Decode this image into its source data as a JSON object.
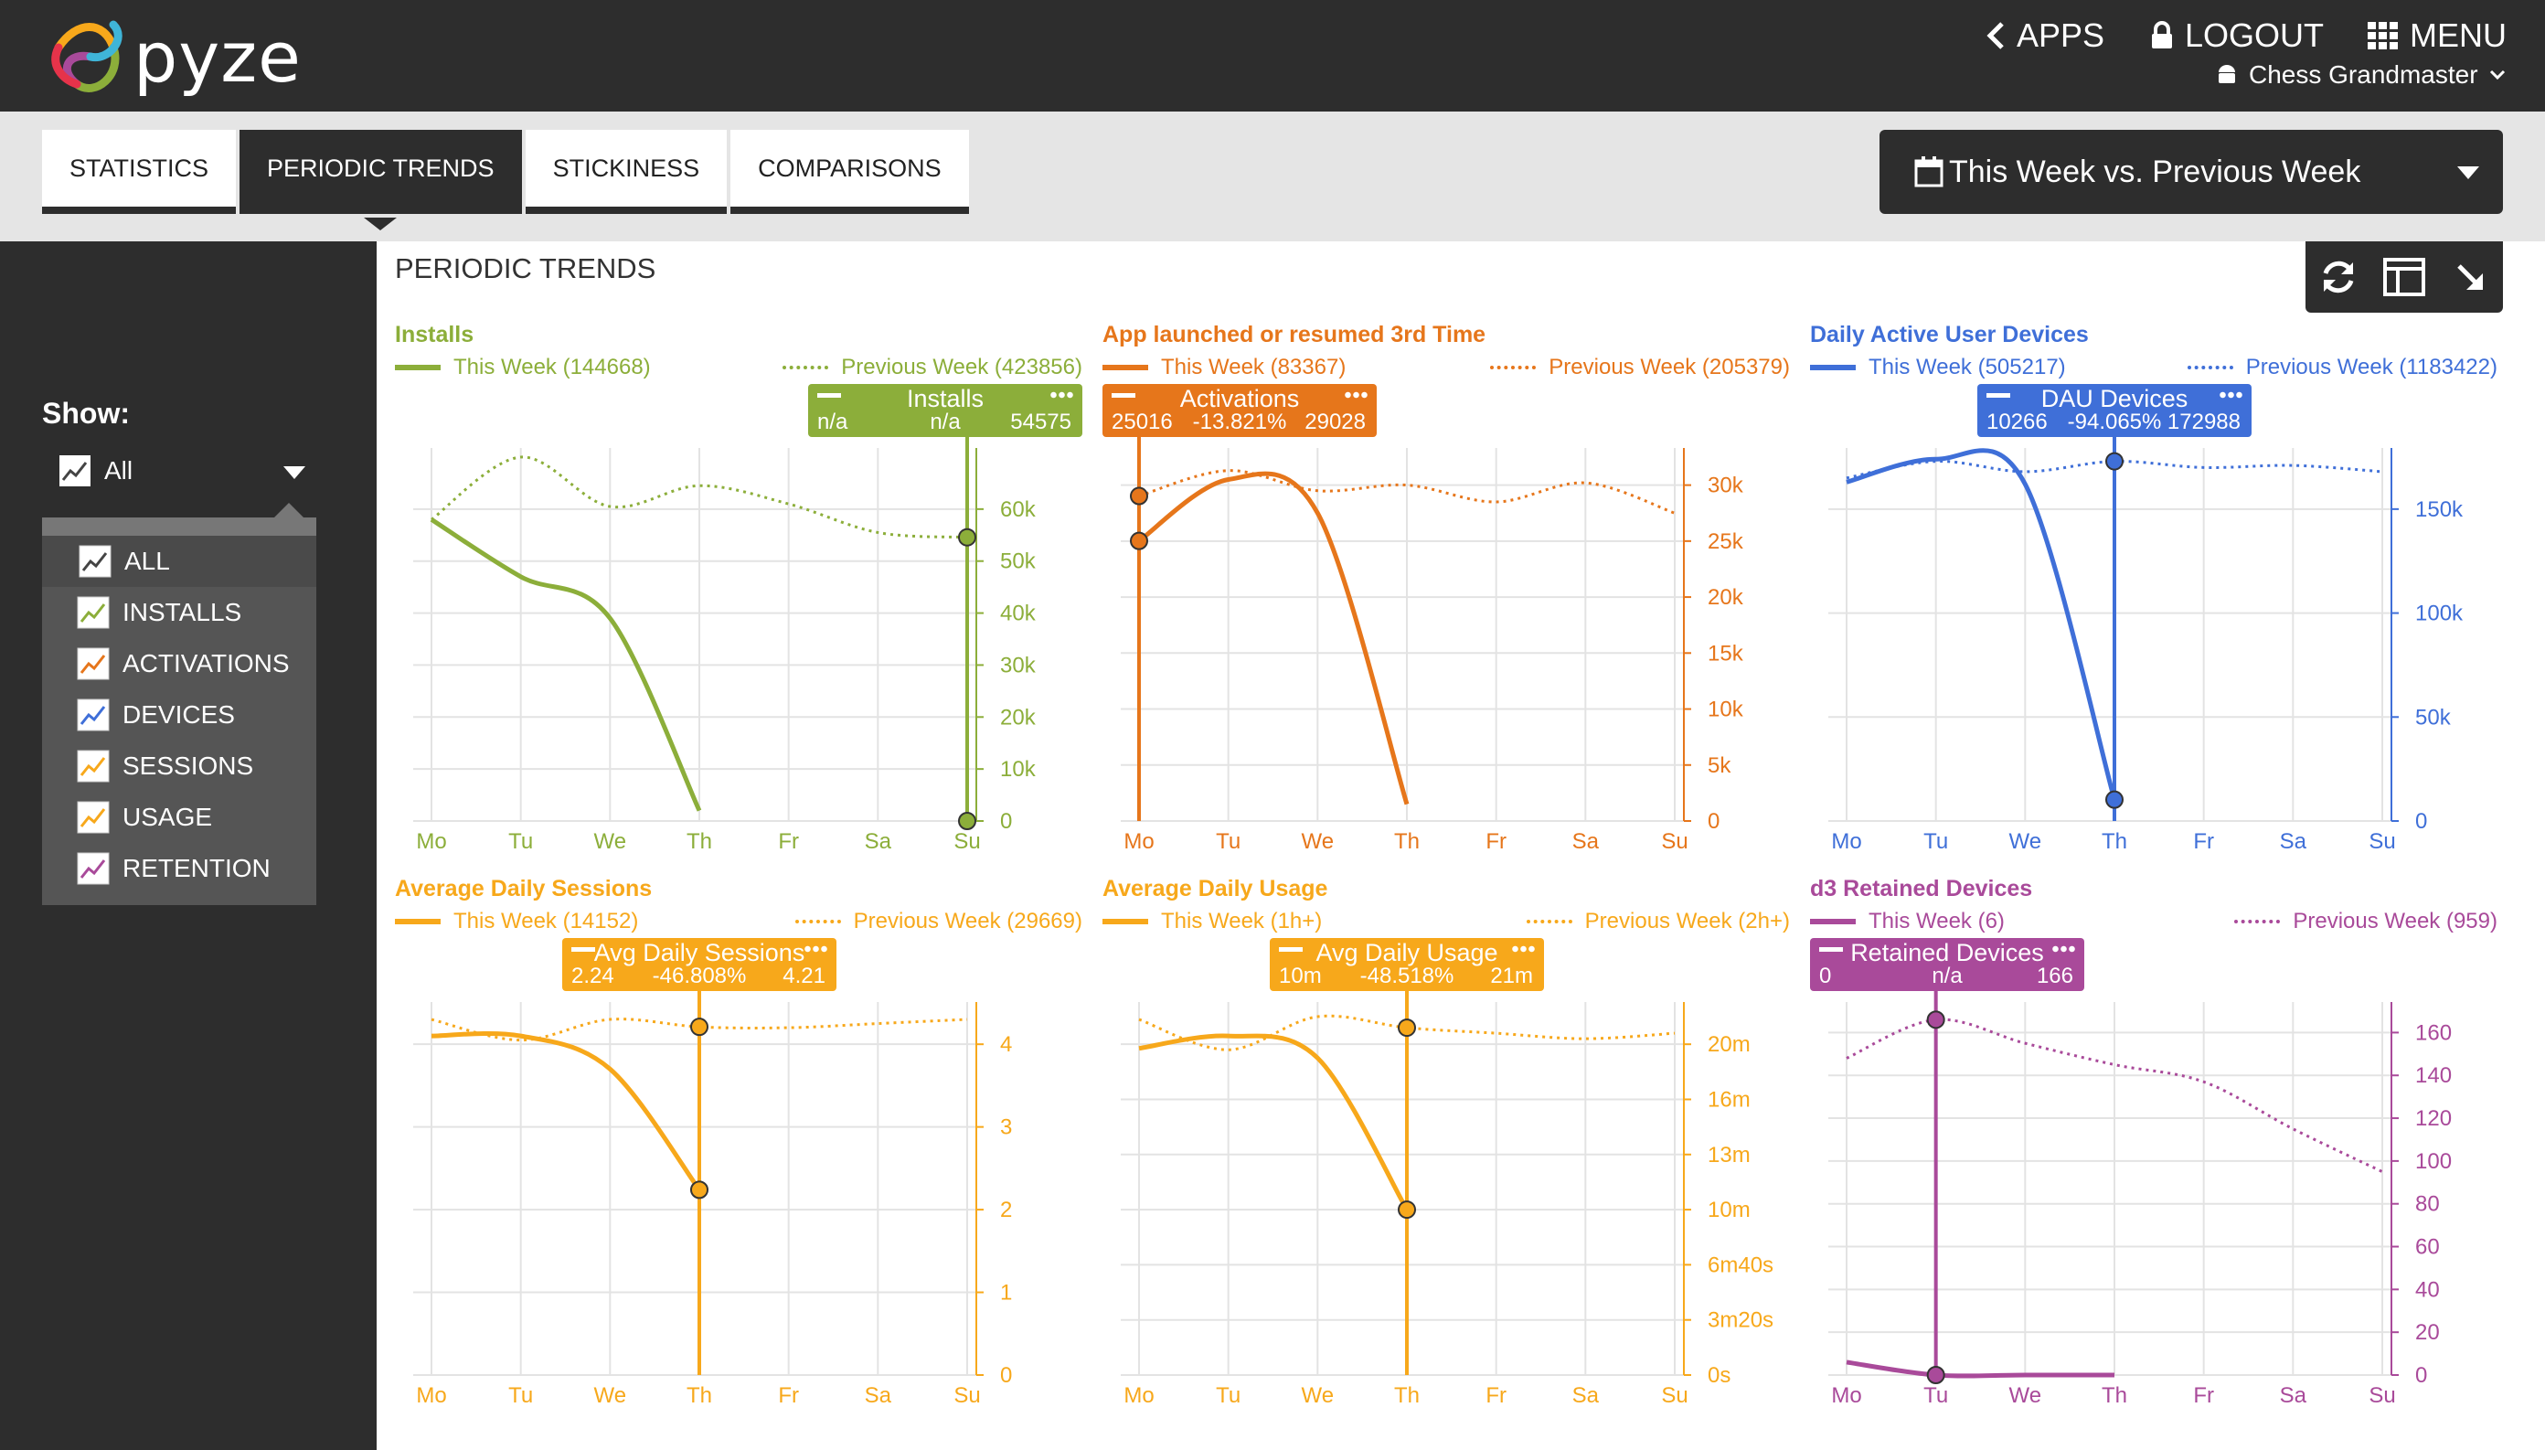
{
  "header": {
    "logo_text": "pyze",
    "apps_label": "APPS",
    "logout_label": "LOGOUT",
    "menu_label": "MENU",
    "app_name": "Chess Grandmaster"
  },
  "tabs": [
    {
      "label": "STATISTICS",
      "active": false
    },
    {
      "label": "PERIODIC TRENDS",
      "active": true
    },
    {
      "label": "STICKINESS",
      "active": false
    },
    {
      "label": "COMPARISONS",
      "active": false
    }
  ],
  "date_range": {
    "label": "This Week vs. Previous Week"
  },
  "sidebar": {
    "show_label": "Show:",
    "selected": "All",
    "items": [
      {
        "label": "ALL",
        "color": "#444444"
      },
      {
        "label": "INSTALLS",
        "color": "#8cae3a"
      },
      {
        "label": "ACTIVATIONS",
        "color": "#e6761b"
      },
      {
        "label": "DEVICES",
        "color": "#3f6fd8"
      },
      {
        "label": "SESSIONS",
        "color": "#f7a81b"
      },
      {
        "label": "USAGE",
        "color": "#f7a81b"
      },
      {
        "label": "RETENTION",
        "color": "#a94a9a"
      }
    ]
  },
  "main": {
    "title": "PERIODIC TRENDS"
  },
  "toolbar": {
    "icons": [
      "refresh-icon",
      "layout-icon",
      "collapse-icon"
    ]
  },
  "chart_data": [
    {
      "type": "line",
      "title": "Installs",
      "color": "#8cae3a",
      "legend_current": "This Week (144668)",
      "legend_previous": "Previous Week (423856)",
      "categories": [
        "Mo",
        "Tu",
        "We",
        "Th",
        "Fr",
        "Sa",
        "Su"
      ],
      "y_ticks": [
        "0",
        "10k",
        "20k",
        "30k",
        "40k",
        "50k",
        "60k"
      ],
      "ylim": [
        0,
        70000
      ],
      "series": [
        {
          "name": "This Week (144668)",
          "style": "solid",
          "values": [
            58000,
            47000,
            39000,
            2000,
            null,
            null,
            null
          ]
        },
        {
          "name": "Previous Week (423856)",
          "style": "dotted",
          "values": [
            58000,
            70000,
            60500,
            64500,
            61000,
            55500,
            54575
          ]
        }
      ],
      "tooltip": {
        "name": "Installs",
        "current": "n/a",
        "change": "n/a",
        "previous": "54575",
        "index": 6,
        "y_current": 0,
        "y_previous": 54575
      }
    },
    {
      "type": "line",
      "title": "App launched or resumed 3rd Time",
      "color": "#e6761b",
      "legend_current": "This Week (83367)",
      "legend_previous": "Previous Week (205379)",
      "categories": [
        "Mo",
        "Tu",
        "We",
        "Th",
        "Fr",
        "Sa",
        "Su"
      ],
      "y_ticks": [
        "0",
        "5k",
        "10k",
        "15k",
        "20k",
        "25k",
        "30k"
      ],
      "ylim": [
        0,
        32500
      ],
      "series": [
        {
          "name": "This Week (83367)",
          "style": "solid",
          "values": [
            25016,
            30500,
            27500,
            1500,
            null,
            null,
            null
          ]
        },
        {
          "name": "Previous Week (205379)",
          "style": "dotted",
          "values": [
            29028,
            31300,
            29500,
            30000,
            28500,
            30200,
            27500
          ]
        }
      ],
      "tooltip": {
        "name": "Activations",
        "current": "25016",
        "change": "-13.821%",
        "previous": "29028",
        "index": 0,
        "y_current": 25016,
        "y_previous": 29028
      }
    },
    {
      "type": "line",
      "title": "Daily Active User Devices",
      "color": "#3f6fd8",
      "legend_current": "This Week (505217)",
      "legend_previous": "Previous Week (1183422)",
      "categories": [
        "Mo",
        "Tu",
        "We",
        "Th",
        "Fr",
        "Sa",
        "Su"
      ],
      "y_ticks": [
        "0",
        "50k",
        "100k",
        "150k"
      ],
      "ylim": [
        0,
        175000
      ],
      "series": [
        {
          "name": "This Week (505217)",
          "style": "solid",
          "values": [
            163000,
            174000,
            162000,
            10266,
            null,
            null,
            null
          ]
        },
        {
          "name": "Previous Week (1183422)",
          "style": "dotted",
          "values": [
            165000,
            173000,
            168000,
            172988,
            170000,
            171000,
            168000
          ]
        }
      ],
      "tooltip": {
        "name": "DAU Devices",
        "current": "10266",
        "change": "-94.065%",
        "previous": "172988",
        "index": 3,
        "y_current": 10266,
        "y_previous": 172988
      }
    },
    {
      "type": "line",
      "title": "Average Daily Sessions",
      "color": "#f7a81b",
      "legend_current": "This Week (14152)",
      "legend_previous": "Previous Week (29669)",
      "categories": [
        "Mo",
        "Tu",
        "We",
        "Th",
        "Fr",
        "Sa",
        "Su"
      ],
      "y_ticks": [
        "0",
        "1",
        "2",
        "3",
        "4"
      ],
      "ylim": [
        0,
        4.4
      ],
      "series": [
        {
          "name": "This Week (14152)",
          "style": "solid",
          "values": [
            4.1,
            4.1,
            3.7,
            2.24,
            null,
            null,
            null
          ]
        },
        {
          "name": "Previous Week (29669)",
          "style": "dotted",
          "values": [
            4.3,
            4.05,
            4.3,
            4.21,
            4.2,
            4.25,
            4.3
          ]
        }
      ],
      "tooltip": {
        "name": "Avg Daily Sessions",
        "current": "2.24",
        "change": "-46.808%",
        "previous": "4.21",
        "index": 3,
        "y_current": 2.24,
        "y_previous": 4.21
      }
    },
    {
      "type": "line",
      "title": "Average Daily Usage",
      "color": "#f7a81b",
      "legend_current": "This Week (1h+)",
      "legend_previous": "Previous Week (2h+)",
      "categories": [
        "Mo",
        "Tu",
        "We",
        "Th",
        "Fr",
        "Sa",
        "Su"
      ],
      "y_ticks": [
        "0s",
        "3m20s",
        "6m40s",
        "10m",
        "13m",
        "16m",
        "20m"
      ],
      "ylim": [
        0,
        1320
      ],
      "series": [
        {
          "name": "This Week (1h+)",
          "style": "solid",
          "values": [
            1185,
            1230,
            1150,
            600,
            null,
            null,
            null
          ]
        },
        {
          "name": "Previous Week (2h+)",
          "style": "dotted",
          "values": [
            1290,
            1180,
            1300,
            1260,
            1240,
            1220,
            1240
          ]
        }
      ],
      "tooltip": {
        "name": "Avg Daily Usage",
        "current": "10m",
        "change": "-48.518%",
        "previous": "21m",
        "index": 3,
        "y_current": 600,
        "y_previous": 1260
      }
    },
    {
      "type": "line",
      "title": "d3 Retained Devices",
      "color": "#a94a9a",
      "legend_current": "This Week (6)",
      "legend_previous": "Previous Week (959)",
      "categories": [
        "Mo",
        "Tu",
        "We",
        "Th",
        "Fr",
        "Sa",
        "Su"
      ],
      "y_ticks": [
        "0",
        "20",
        "40",
        "60",
        "80",
        "100",
        "120",
        "140",
        "160"
      ],
      "ylim": [
        0,
        170
      ],
      "series": [
        {
          "name": "This Week (6)",
          "style": "solid",
          "values": [
            6,
            0,
            0,
            0,
            null,
            null,
            null
          ]
        },
        {
          "name": "Previous Week (959)",
          "style": "dotted",
          "values": [
            148,
            166,
            155,
            145,
            137,
            115,
            95
          ]
        }
      ],
      "tooltip": {
        "name": "Retained Devices",
        "current": "0",
        "change": "n/a",
        "previous": "166",
        "index": 1,
        "y_current": 0,
        "y_previous": 166
      }
    }
  ]
}
